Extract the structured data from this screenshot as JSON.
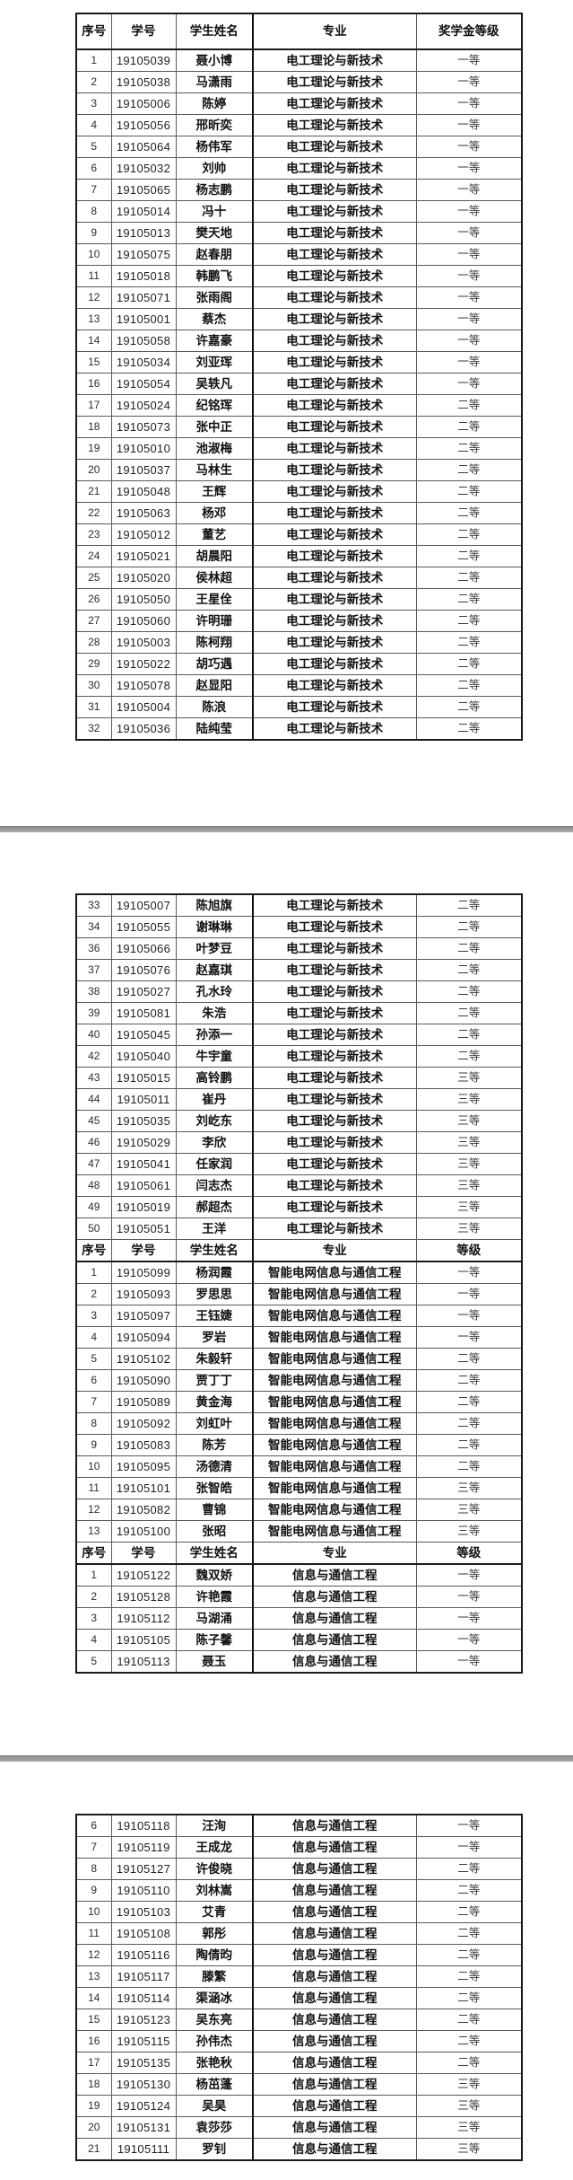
{
  "separator_color": "#9e9e9e",
  "scholarship_levels": [
    "一等",
    "二等",
    "三等"
  ],
  "pages": [
    {
      "table": {
        "rows": [
          {
            "header": true,
            "tall": true,
            "cells": [
              "序号",
              "学号",
              "学生姓名",
              "专业",
              "奖学金等级"
            ]
          },
          {
            "cells": [
              "1",
              "19105039",
              "聂小博",
              "电工理论与新技术",
              "一等"
            ]
          },
          {
            "cells": [
              "2",
              "19105038",
              "马潇雨",
              "电工理论与新技术",
              "一等"
            ]
          },
          {
            "cells": [
              "3",
              "19105006",
              "陈婷",
              "电工理论与新技术",
              "一等"
            ]
          },
          {
            "cells": [
              "4",
              "19105056",
              "邢昕奕",
              "电工理论与新技术",
              "一等"
            ]
          },
          {
            "cells": [
              "5",
              "19105064",
              "杨伟军",
              "电工理论与新技术",
              "一等"
            ]
          },
          {
            "cells": [
              "6",
              "19105032",
              "刘帅",
              "电工理论与新技术",
              "一等"
            ]
          },
          {
            "cells": [
              "7",
              "19105065",
              "杨志鹏",
              "电工理论与新技术",
              "一等"
            ]
          },
          {
            "cells": [
              "8",
              "19105014",
              "冯十",
              "电工理论与新技术",
              "一等"
            ]
          },
          {
            "cells": [
              "9",
              "19105013",
              "樊天地",
              "电工理论与新技术",
              "一等"
            ]
          },
          {
            "cells": [
              "10",
              "19105075",
              "赵春朋",
              "电工理论与新技术",
              "一等"
            ]
          },
          {
            "cells": [
              "11",
              "19105018",
              "韩鹏飞",
              "电工理论与新技术",
              "一等"
            ]
          },
          {
            "cells": [
              "12",
              "19105071",
              "张雨阁",
              "电工理论与新技术",
              "一等"
            ]
          },
          {
            "cells": [
              "13",
              "19105001",
              "蔡杰",
              "电工理论与新技术",
              "一等"
            ]
          },
          {
            "cells": [
              "14",
              "19105058",
              "许嘉豪",
              "电工理论与新技术",
              "一等"
            ]
          },
          {
            "cells": [
              "15",
              "19105034",
              "刘亚珲",
              "电工理论与新技术",
              "一等"
            ]
          },
          {
            "cells": [
              "16",
              "19105054",
              "吴轶凡",
              "电工理论与新技术",
              "一等"
            ]
          },
          {
            "cells": [
              "17",
              "19105024",
              "纪铭珲",
              "电工理论与新技术",
              "二等"
            ]
          },
          {
            "cells": [
              "18",
              "19105073",
              "张中正",
              "电工理论与新技术",
              "二等"
            ]
          },
          {
            "cells": [
              "19",
              "19105010",
              "池淑梅",
              "电工理论与新技术",
              "二等"
            ]
          },
          {
            "cells": [
              "20",
              "19105037",
              "马林生",
              "电工理论与新技术",
              "二等"
            ]
          },
          {
            "cells": [
              "21",
              "19105048",
              "王辉",
              "电工理论与新技术",
              "二等"
            ]
          },
          {
            "cells": [
              "22",
              "19105063",
              "杨邓",
              "电工理论与新技术",
              "二等"
            ]
          },
          {
            "cells": [
              "23",
              "19105012",
              "董艺",
              "电工理论与新技术",
              "二等"
            ]
          },
          {
            "cells": [
              "24",
              "19105021",
              "胡晨阳",
              "电工理论与新技术",
              "二等"
            ]
          },
          {
            "cells": [
              "25",
              "19105020",
              "侯林超",
              "电工理论与新技术",
              "二等"
            ]
          },
          {
            "cells": [
              "26",
              "19105050",
              "王星佺",
              "电工理论与新技术",
              "二等"
            ]
          },
          {
            "cells": [
              "27",
              "19105060",
              "许明珊",
              "电工理论与新技术",
              "二等"
            ]
          },
          {
            "cells": [
              "28",
              "19105003",
              "陈柯翔",
              "电工理论与新技术",
              "二等"
            ]
          },
          {
            "cells": [
              "29",
              "19105022",
              "胡巧遇",
              "电工理论与新技术",
              "二等"
            ]
          },
          {
            "cells": [
              "30",
              "19105078",
              "赵显阳",
              "电工理论与新技术",
              "二等"
            ]
          },
          {
            "cells": [
              "31",
              "19105004",
              "陈浪",
              "电工理论与新技术",
              "二等"
            ]
          },
          {
            "cells": [
              "32",
              "19105036",
              "陆纯莹",
              "电工理论与新技术",
              "二等"
            ]
          }
        ]
      }
    },
    {
      "table": {
        "rows": [
          {
            "cells": [
              "33",
              "19105007",
              "陈旭旗",
              "电工理论与新技术",
              "二等"
            ]
          },
          {
            "cells": [
              "34",
              "19105055",
              "谢琳琳",
              "电工理论与新技术",
              "二等"
            ]
          },
          {
            "cells": [
              "36",
              "19105066",
              "叶梦豆",
              "电工理论与新技术",
              "二等"
            ]
          },
          {
            "cells": [
              "37",
              "19105076",
              "赵嘉琪",
              "电工理论与新技术",
              "二等"
            ]
          },
          {
            "cells": [
              "38",
              "19105027",
              "孔水玲",
              "电工理论与新技术",
              "二等"
            ]
          },
          {
            "cells": [
              "39",
              "19105081",
              "朱浩",
              "电工理论与新技术",
              "二等"
            ]
          },
          {
            "cells": [
              "40",
              "19105045",
              "孙添一",
              "电工理论与新技术",
              "二等"
            ]
          },
          {
            "cells": [
              "42",
              "19105040",
              "牛宇童",
              "电工理论与新技术",
              "二等"
            ]
          },
          {
            "cells": [
              "43",
              "19105015",
              "高铃鹏",
              "电工理论与新技术",
              "三等"
            ]
          },
          {
            "cells": [
              "44",
              "19105011",
              "崔丹",
              "电工理论与新技术",
              "三等"
            ]
          },
          {
            "cells": [
              "45",
              "19105035",
              "刘屹东",
              "电工理论与新技术",
              "三等"
            ]
          },
          {
            "cells": [
              "46",
              "19105029",
              "李欣",
              "电工理论与新技术",
              "三等"
            ]
          },
          {
            "cells": [
              "47",
              "19105041",
              "任家润",
              "电工理论与新技术",
              "三等"
            ]
          },
          {
            "cells": [
              "48",
              "19105061",
              "闫志杰",
              "电工理论与新技术",
              "三等"
            ]
          },
          {
            "cells": [
              "49",
              "19105019",
              "郝超杰",
              "电工理论与新技术",
              "三等"
            ]
          },
          {
            "cells": [
              "50",
              "19105051",
              "王洋",
              "电工理论与新技术",
              "三等"
            ]
          },
          {
            "header": true,
            "cells": [
              "序号",
              "学号",
              "学生姓名",
              "专业",
              "等级"
            ]
          },
          {
            "cells": [
              "1",
              "19105099",
              "杨润霞",
              "智能电网信息与通信工程",
              "一等"
            ]
          },
          {
            "cells": [
              "2",
              "19105093",
              "罗思思",
              "智能电网信息与通信工程",
              "一等"
            ]
          },
          {
            "cells": [
              "3",
              "19105097",
              "王钰婕",
              "智能电网信息与通信工程",
              "一等"
            ]
          },
          {
            "cells": [
              "4",
              "19105094",
              "罗岩",
              "智能电网信息与通信工程",
              "一等"
            ]
          },
          {
            "cells": [
              "5",
              "19105102",
              "朱毅轩",
              "智能电网信息与通信工程",
              "二等"
            ]
          },
          {
            "cells": [
              "6",
              "19105090",
              "贾丁丁",
              "智能电网信息与通信工程",
              "二等"
            ]
          },
          {
            "cells": [
              "7",
              "19105089",
              "黄金海",
              "智能电网信息与通信工程",
              "二等"
            ]
          },
          {
            "cells": [
              "8",
              "19105092",
              "刘虹叶",
              "智能电网信息与通信工程",
              "二等"
            ]
          },
          {
            "cells": [
              "9",
              "19105083",
              "陈芳",
              "智能电网信息与通信工程",
              "二等"
            ]
          },
          {
            "cells": [
              "10",
              "19105095",
              "汤德清",
              "智能电网信息与通信工程",
              "二等"
            ]
          },
          {
            "cells": [
              "11",
              "19105101",
              "张智皓",
              "智能电网信息与通信工程",
              "三等"
            ]
          },
          {
            "cells": [
              "12",
              "19105082",
              "曹锦",
              "智能电网信息与通信工程",
              "三等"
            ]
          },
          {
            "cells": [
              "13",
              "19105100",
              "张昭",
              "智能电网信息与通信工程",
              "三等"
            ]
          },
          {
            "header": true,
            "cells": [
              "序号",
              "学号",
              "学生姓名",
              "专业",
              "等级"
            ]
          },
          {
            "cells": [
              "1",
              "19105122",
              "魏双娇",
              "信息与通信工程",
              "一等"
            ]
          },
          {
            "cells": [
              "2",
              "19105128",
              "许艳霞",
              "信息与通信工程",
              "一等"
            ]
          },
          {
            "cells": [
              "3",
              "19105112",
              "马湖涌",
              "信息与通信工程",
              "一等"
            ]
          },
          {
            "cells": [
              "4",
              "19105105",
              "陈子馨",
              "信息与通信工程",
              "一等"
            ]
          },
          {
            "cells": [
              "5",
              "19105113",
              "聂玉",
              "信息与通信工程",
              "一等"
            ]
          }
        ]
      }
    },
    {
      "table": {
        "rows": [
          {
            "cells": [
              "6",
              "19105118",
              "汪洵",
              "信息与通信工程",
              "一等"
            ]
          },
          {
            "cells": [
              "7",
              "19105119",
              "王成龙",
              "信息与通信工程",
              "一等"
            ]
          },
          {
            "cells": [
              "8",
              "19105127",
              "许俊晓",
              "信息与通信工程",
              "二等"
            ]
          },
          {
            "cells": [
              "9",
              "19105110",
              "刘林嵩",
              "信息与通信工程",
              "二等"
            ]
          },
          {
            "cells": [
              "10",
              "19105103",
              "艾青",
              "信息与通信工程",
              "二等"
            ]
          },
          {
            "cells": [
              "11",
              "19105108",
              "郭彤",
              "信息与通信工程",
              "二等"
            ]
          },
          {
            "cells": [
              "12",
              "19105116",
              "陶倩昀",
              "信息与通信工程",
              "二等"
            ]
          },
          {
            "cells": [
              "13",
              "19105117",
              "滕繁",
              "信息与通信工程",
              "二等"
            ]
          },
          {
            "cells": [
              "14",
              "19105114",
              "渠涵冰",
              "信息与通信工程",
              "二等"
            ]
          },
          {
            "cells": [
              "15",
              "19105123",
              "吴东亮",
              "信息与通信工程",
              "二等"
            ]
          },
          {
            "cells": [
              "16",
              "19105115",
              "孙伟杰",
              "信息与通信工程",
              "二等"
            ]
          },
          {
            "cells": [
              "17",
              "19105135",
              "张艳秋",
              "信息与通信工程",
              "二等"
            ]
          },
          {
            "cells": [
              "18",
              "19105130",
              "杨茁蓬",
              "信息与通信工程",
              "三等"
            ]
          },
          {
            "cells": [
              "19",
              "19105124",
              "吴昊",
              "信息与通信工程",
              "三等"
            ]
          },
          {
            "cells": [
              "20",
              "19105131",
              "袁莎莎",
              "信息与通信工程",
              "三等"
            ]
          },
          {
            "cells": [
              "21",
              "19105111",
              "罗钊",
              "信息与通信工程",
              "三等"
            ]
          }
        ]
      }
    }
  ]
}
